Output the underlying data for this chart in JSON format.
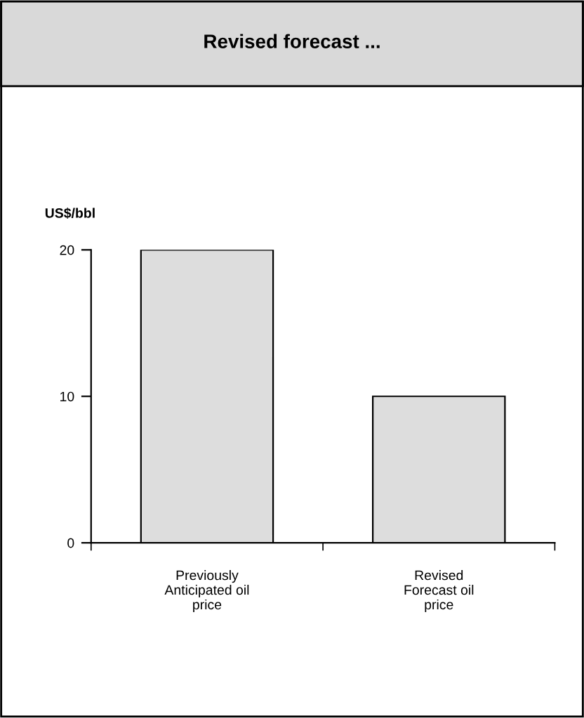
{
  "chart_data": {
    "type": "bar",
    "title": "Revised forecast ...",
    "ylabel": "US$/bbl",
    "categories": [
      "Previously\nAnticipated oil\nprice",
      "Revised\nForecast oil\nprice"
    ],
    "values": [
      20,
      10
    ],
    "color": "#dddddd",
    "ylim": [
      0,
      20
    ],
    "yticks": [
      0,
      10,
      20
    ],
    "grid": false,
    "legend": false
  }
}
